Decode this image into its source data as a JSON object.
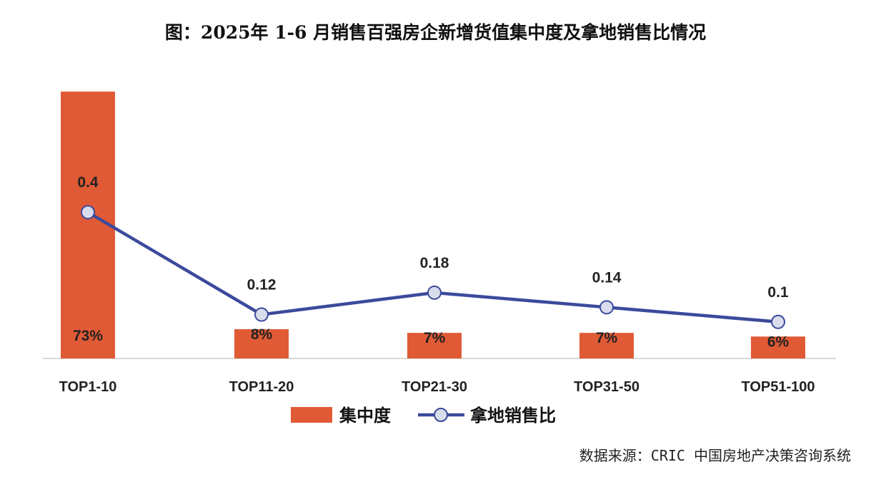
{
  "chart_data": {
    "type": "bar+line",
    "title": "图：2025年 1-6 月销售百强房企新增货值集中度及拿地销售比情况",
    "categories": [
      "TOP1-10",
      "TOP11-20",
      "TOP21-30",
      "TOP31-50",
      "TOP51-100"
    ],
    "series": [
      {
        "name": "集中度",
        "type": "bar",
        "values": [
          0.73,
          0.08,
          0.07,
          0.07,
          0.06
        ],
        "labels": [
          "73%",
          "8%",
          "7%",
          "7%",
          "6%"
        ],
        "color": "#E05A35"
      },
      {
        "name": "拿地销售比",
        "type": "line",
        "values": [
          0.4,
          0.12,
          0.18,
          0.14,
          0.1
        ],
        "labels": [
          "0.4",
          "0.12",
          "0.18",
          "0.14",
          "0.1"
        ],
        "color": "#3B4A9C",
        "marker_fill": "#D9DCEB"
      }
    ],
    "ylim": [
      0,
      0.75
    ],
    "grid": false,
    "legend": "bottom-center",
    "source": "数据来源：CRIC 中国房地产决策咨询系统"
  }
}
